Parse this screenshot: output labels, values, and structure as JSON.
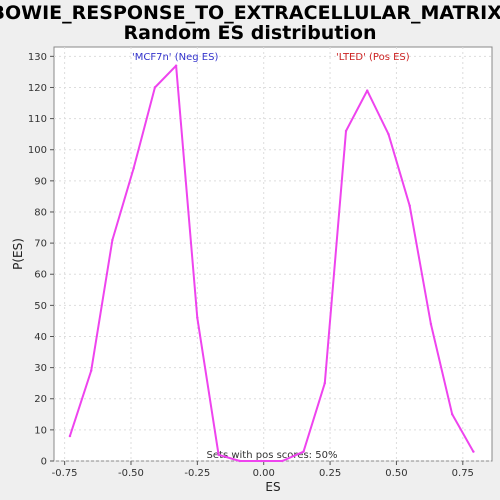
{
  "chart_data": {
    "type": "line",
    "title_line1": "BOWIE_RESPONSE_TO_EXTRACELLULAR_MATRIX:",
    "title_line2": "Random ES distribution",
    "xlabel": "ES",
    "ylabel": "P(ES)",
    "xlim": [
      -0.79,
      0.86
    ],
    "ylim": [
      0,
      133
    ],
    "xticks": [
      -0.75,
      -0.5,
      -0.25,
      0.0,
      0.25,
      0.5,
      0.75
    ],
    "xtick_labels": [
      "-0.75",
      "-0.50",
      "-0.25",
      "0.00",
      "0.25",
      "0.50",
      "0.75"
    ],
    "yticks": [
      0,
      10,
      20,
      30,
      40,
      50,
      60,
      70,
      80,
      90,
      100,
      110,
      120,
      130
    ],
    "grid": true,
    "line_color": "#ee44ee",
    "series": [
      {
        "x": [
          -0.73,
          -0.65,
          -0.57,
          -0.49,
          -0.41,
          -0.33,
          -0.25,
          -0.17,
          -0.09,
          -0.01,
          0.07,
          0.15,
          0.23,
          0.31,
          0.39,
          0.47,
          0.55,
          0.63,
          0.71,
          0.79
        ],
        "y": [
          8,
          29,
          71,
          94,
          120,
          127,
          46,
          2,
          0,
          0,
          0,
          3,
          25,
          106,
          119,
          105,
          82,
          44,
          15,
          3
        ]
      }
    ],
    "annotations": {
      "neg_label": "'MCF7n' (Neg ES)",
      "neg_color": "#3333cc",
      "pos_label": "'LTED' (Pos ES)",
      "pos_color": "#cc2222",
      "sets_text": "Sets with pos scores: 50%"
    }
  }
}
